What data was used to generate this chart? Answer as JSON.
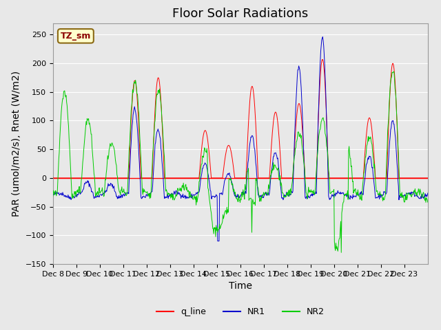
{
  "title": "Floor Solar Radiations",
  "xlabel": "Time",
  "ylabel": "PAR (umol/m2/s), Rnet (W/m2)",
  "ylim": [
    -150,
    270
  ],
  "yticks": [
    -150,
    -100,
    -50,
    0,
    50,
    100,
    150,
    200,
    250
  ],
  "x_tick_labels": [
    "Dec 8",
    "Dec 9",
    "Dec 10",
    "Dec 11",
    "Dec 12",
    "Dec 13",
    "Dec 14",
    "Dec 15",
    "Dec 16",
    "Dec 17",
    "Dec 18",
    "Dec 19",
    "Dec 20",
    "Dec 21",
    "Dec 22",
    "Dec 23"
  ],
  "annotation_text": "TZ_sm",
  "annotation_bg": "#FFFFCC",
  "annotation_fg": "#8B0000",
  "annotation_edge": "#8B6914",
  "bg_color": "#E8E8E8",
  "q_line_color": "#FF0000",
  "nr1_color": "#0000CC",
  "nr2_color": "#00CC00",
  "legend_labels": [
    "q_line",
    "NR1",
    "NR2"
  ],
  "title_fontsize": 13,
  "axis_label_fontsize": 10,
  "tick_fontsize": 8,
  "n_days": 16,
  "n_points_per_day": 48
}
